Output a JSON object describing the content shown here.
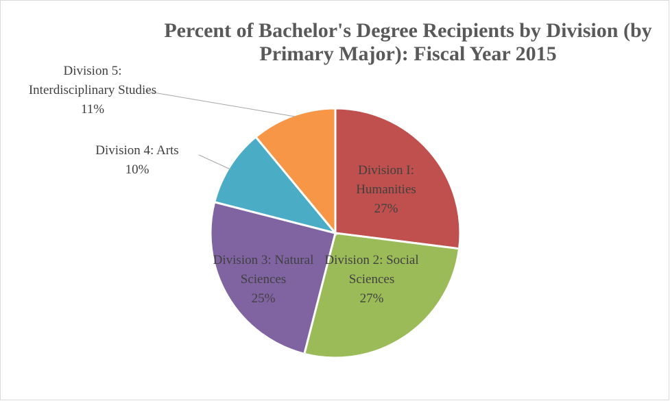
{
  "chart_data": {
    "type": "pie",
    "title": "Percent of Bachelor's Degree Recipients by Division (by Primary Major): Fiscal Year 2015",
    "categories": [
      "Division I: Humanities",
      "Division 2: Social Sciences",
      "Division 3: Natural Sciences",
      "Division 4: Arts",
      "Division 5: Interdisciplinary Studies"
    ],
    "values": [
      27,
      27,
      25,
      10,
      11
    ],
    "value_labels": [
      "27%",
      "27%",
      "25%",
      "10%",
      "11%"
    ],
    "colors": [
      "#c0504d",
      "#9bbb59",
      "#8064a2",
      "#4bacc6",
      "#f79646"
    ]
  }
}
